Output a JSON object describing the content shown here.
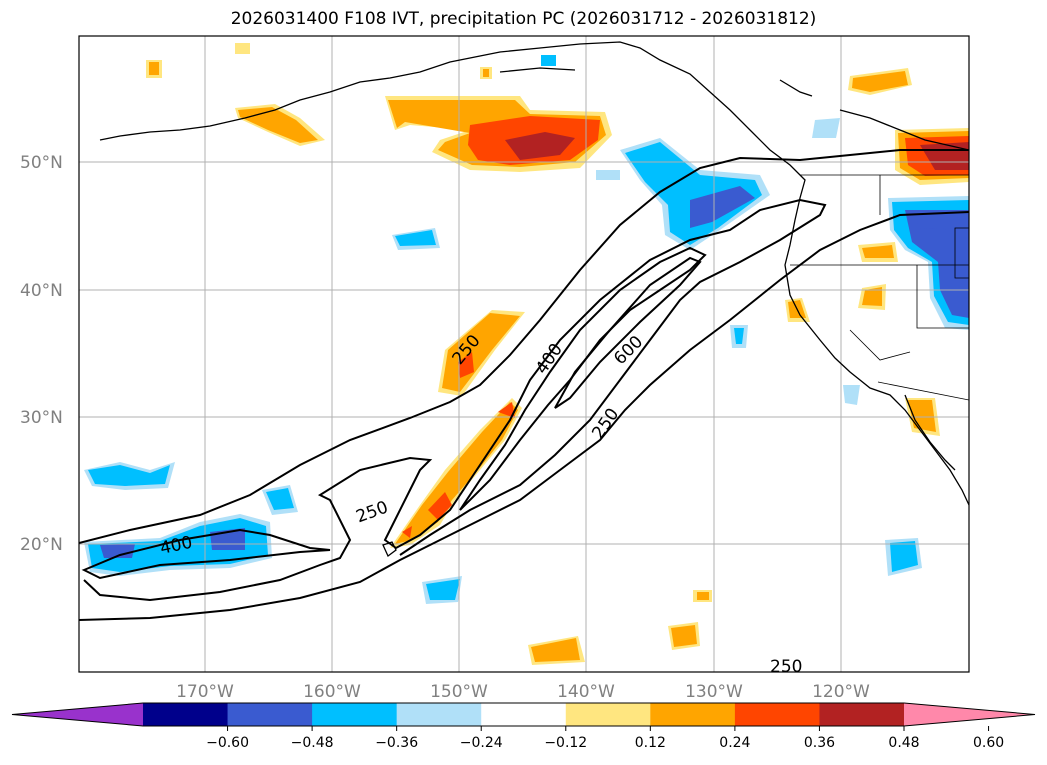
{
  "title": "2026031400 F108 IVT, precipitation PC (2026031712 - 2026031812)",
  "lat_labels": [
    "50°N",
    "40°N",
    "30°N",
    "20°N"
  ],
  "lon_labels": [
    "170°W",
    "160°W",
    "150°W",
    "140°W",
    "130°W",
    "120°W"
  ],
  "contour_labels": [
    "250",
    "400",
    "600",
    "250",
    "250",
    "400",
    "250"
  ],
  "colorbar": {
    "ticks": [
      "−0.60",
      "−0.48",
      "−0.36",
      "−0.24",
      "−0.12",
      "0.12",
      "0.24",
      "0.36",
      "0.48",
      "0.60"
    ],
    "colors": [
      "#9932cc",
      "#00008b",
      "#3a5bd0",
      "#00bfff",
      "#b0e0f8",
      "#ffffff",
      "#ffe680",
      "#ffa500",
      "#ff4500",
      "#b22222",
      "#ff88aa"
    ]
  },
  "colors": {
    "grid": "#b0b0b0",
    "contour": "#000000"
  }
}
